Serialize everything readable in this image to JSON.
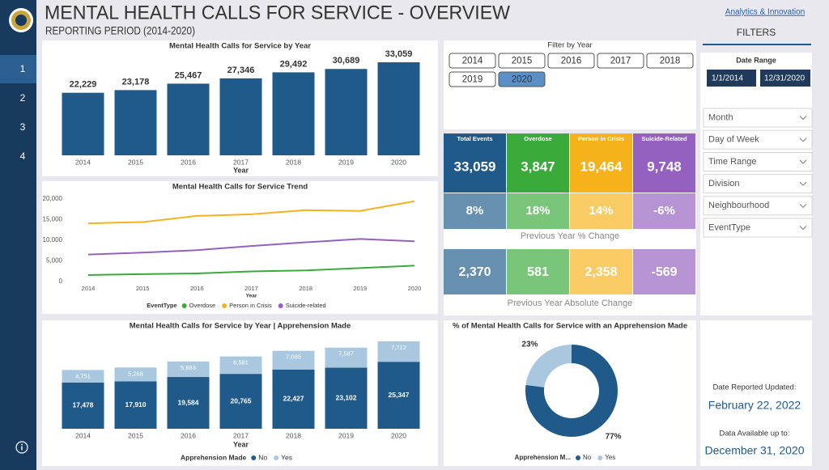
{
  "header": {
    "title": "MENTAL HEALTH CALLS FOR SERVICE - OVERVIEW",
    "subtitle": "REPORTING PERIOD (2014-2020)",
    "credit": "Analytics & Innovation"
  },
  "nav": {
    "pages": [
      "1",
      "2",
      "3",
      "4"
    ],
    "selected": "1"
  },
  "chart_data": [
    {
      "type": "bar",
      "title": "Mental Health Calls for Service by Year",
      "x_label": "Year",
      "categories": [
        "2014",
        "2015",
        "2016",
        "2017",
        "2018",
        "2019",
        "2020"
      ],
      "values": [
        22229,
        23178,
        25467,
        27346,
        29492,
        30689,
        33059
      ],
      "value_labels": [
        "22,229",
        "23,178",
        "25,467",
        "27,346",
        "29,492",
        "30,689",
        "33,059"
      ],
      "color": "#1f5a8a"
    },
    {
      "type": "line",
      "title": "Mental Health Calls for Service Trend",
      "x_label": "Year",
      "legend_title": "EventType",
      "categories": [
        "2014",
        "2015",
        "2016",
        "2017",
        "2018",
        "2019",
        "2020"
      ],
      "series": [
        {
          "name": "Overdose",
          "color": "#3aaa3a",
          "values": [
            1579,
            1778,
            1967,
            2446,
            2692,
            3266,
            3847
          ]
        },
        {
          "name": "Person in Crisis",
          "color": "#f5b21b",
          "values": [
            14100,
            14400,
            15900,
            16300,
            17300,
            17106,
            19464
          ]
        },
        {
          "name": "Suicide-related",
          "color": "#9461c0",
          "values": [
            6550,
            7000,
            7600,
            8600,
            9500,
            10317,
            9748
          ]
        }
      ],
      "ylim": [
        0,
        20000
      ],
      "yticks": [
        0,
        {
          "value": 5000,
          "label": "5,000"
        },
        {
          "value": 10000,
          "label": "10,000"
        },
        {
          "value": 15000,
          "label": "15,000"
        },
        {
          "value": 20000,
          "label": "20,000"
        }
      ]
    },
    {
      "type": "stacked_bar",
      "title": "Mental Health Calls for Service by Year | Apprehension Made",
      "x_label": "Year",
      "legend_title": "Apprehension Made",
      "categories": [
        "2014",
        "2015",
        "2016",
        "2017",
        "2018",
        "2019",
        "2020"
      ],
      "series": [
        {
          "name": "No",
          "color": "#1f5a8a",
          "values": [
            17478,
            17910,
            19584,
            20765,
            22427,
            23102,
            25347
          ],
          "value_labels": [
            "17,478",
            "17,910",
            "19,584",
            "20,765",
            "22,427",
            "23,102",
            "25,347"
          ]
        },
        {
          "name": "Yes",
          "color": "#a9c8e0",
          "values": [
            4751,
            5268,
            5883,
            6581,
            7065,
            7587,
            7712
          ],
          "value_labels": [
            "4,751",
            "5,268",
            "5,883",
            "6,581",
            "7,065",
            "7,587",
            "7,712"
          ]
        }
      ]
    },
    {
      "type": "pie",
      "title": "% of Mental Health Calls for Service with an Apprehension Made",
      "legend_title": "Apprehension M...",
      "categories": [
        "No",
        "Yes"
      ],
      "values": [
        77,
        23
      ],
      "value_labels": [
        "77%",
        "23%"
      ],
      "colors": [
        "#1f5a8a",
        "#a9c8e0"
      ]
    }
  ],
  "year_filter": {
    "title": "Filter by Year",
    "options": [
      "2014",
      "2015",
      "2016",
      "2017",
      "2018",
      "2019",
      "2020"
    ],
    "selected": "2020"
  },
  "kpis": {
    "columns": [
      {
        "name": "Total Events",
        "value": "33,059",
        "pct_change": "8%",
        "abs_change": "2,370",
        "color": "#1f5a8a"
      },
      {
        "name": "Overdose",
        "value": "3,847",
        "pct_change": "18%",
        "abs_change": "581",
        "color": "#3aaa3a"
      },
      {
        "name": "Person in Crisis",
        "value": "19,464",
        "pct_change": "14%",
        "abs_change": "2,358",
        "color": "#f5b21b"
      },
      {
        "name": "Suicide-Related",
        "value": "9,748",
        "pct_change": "-6%",
        "abs_change": "-569",
        "color": "#9461c0"
      }
    ],
    "pct_label": "Previous Year % Change",
    "abs_label": "Previous Year Absolute Change"
  },
  "filters": {
    "title": "FILTERS",
    "date_range": {
      "title": "Date Range",
      "start": "1/1/2014",
      "end": "12/31/2020"
    },
    "dropdowns": [
      "Month",
      "Day of Week",
      "Time Range",
      "Division",
      "Neighbourhood",
      "EventType"
    ]
  },
  "updates": {
    "reported_label": "Date Reported Updated:",
    "reported": "February 22, 2022",
    "available_label": "Data Available up to:",
    "available": "December 31, 2020"
  }
}
